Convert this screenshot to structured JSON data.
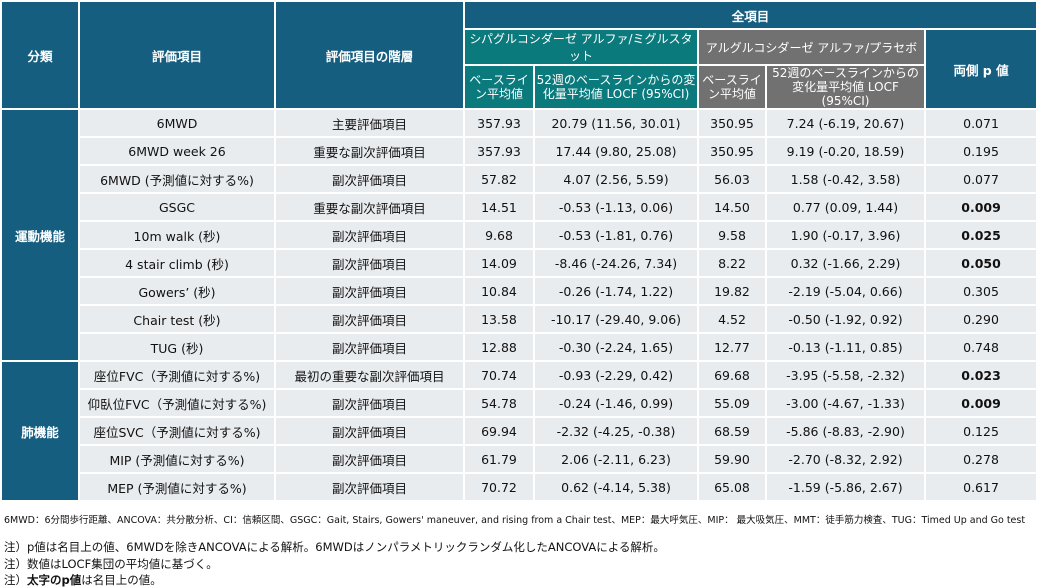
{
  "header": {
    "category": "分類",
    "item": "評価項目",
    "level": "評価項目の階層",
    "all": "全項目",
    "group1": "シパグルコシダーゼ アルファ/ミグルスタット",
    "group2": "アルグルコシダーゼ アルファ/プラセボ",
    "baseline": "ベースライン平均値",
    "change": "52週のベースラインからの変化量平均値 LOCF (95%CI)",
    "pvalue": "両側 p 値"
  },
  "categories": [
    "運動機能",
    "肺機能"
  ],
  "rows": [
    {
      "item": "6MWD",
      "level": "主要評価項目",
      "b1": "357.93",
      "c1": "20.79 (11.56, 30.01)",
      "b2": "350.95",
      "c2": "7.24 (-6.19, 20.67)",
      "p": "0.071",
      "bold": false
    },
    {
      "item": "6MWD week 26",
      "level": "重要な副次評価項目",
      "b1": "357.93",
      "c1": "17.44 (9.80, 25.08)",
      "b2": "350.95",
      "c2": "9.19 (-0.20, 18.59)",
      "p": "0.195",
      "bold": false
    },
    {
      "item": "6MWD (予測値に対する%)",
      "level": "副次評価項目",
      "b1": "57.82",
      "c1": "4.07 (2.56, 5.59)",
      "b2": "56.03",
      "c2": "1.58 (-0.42, 3.58)",
      "p": "0.077",
      "bold": false
    },
    {
      "item": "GSGC",
      "level": "重要な副次評価項目",
      "b1": "14.51",
      "c1": "-0.53 (-1.13, 0.06)",
      "b2": "14.50",
      "c2": "0.77 (0.09, 1.44)",
      "p": "0.009",
      "bold": true
    },
    {
      "item": "10m walk (秒)",
      "level": "副次評価項目",
      "b1": "9.68",
      "c1": "-0.53 (-1.81, 0.76)",
      "b2": "9.58",
      "c2": "1.90 (-0.17, 3.96)",
      "p": "0.025",
      "bold": true
    },
    {
      "item": "4 stair climb (秒)",
      "level": "副次評価項目",
      "b1": "14.09",
      "c1": "-8.46 (-24.26, 7.34)",
      "b2": "8.22",
      "c2": "0.32 (-1.66, 2.29)",
      "p": "0.050",
      "bold": true
    },
    {
      "item": "Gowers’ (秒)",
      "level": "副次評価項目",
      "b1": "10.84",
      "c1": "-0.26 (-1.74, 1.22)",
      "b2": "19.82",
      "c2": "-2.19 (-5.04, 0.66)",
      "p": "0.305",
      "bold": false
    },
    {
      "item": "Chair test (秒)",
      "level": "副次評価項目",
      "b1": "13.58",
      "c1": "-10.17 (-29.40, 9.06)",
      "b2": "4.52",
      "c2": "-0.50 (-1.92, 0.92)",
      "p": "0.290",
      "bold": false
    },
    {
      "item": "TUG (秒)",
      "level": "副次評価項目",
      "b1": "12.88",
      "c1": "-0.30 (-2.24, 1.65)",
      "b2": "12.77",
      "c2": "-0.13 (-1.11, 0.85)",
      "p": "0.748",
      "bold": false
    },
    {
      "item": "座位FVC（予測値に対する%)",
      "level": "最初の重要な副次評価項目",
      "b1": "70.74",
      "c1": "-0.93 (-2.29, 0.42)",
      "b2": "69.68",
      "c2": "-3.95 (-5.58, -2.32)",
      "p": "0.023",
      "bold": true
    },
    {
      "item": "仰臥位FVC（予測値に対する%)",
      "level": "副次評価項目",
      "b1": "54.78",
      "c1": "-0.24 (-1.46, 0.99)",
      "b2": "55.09",
      "c2": "-3.00 (-4.67, -1.33)",
      "p": "0.009",
      "bold": true
    },
    {
      "item": "座位SVC（予測値に対する%)",
      "level": "副次評価項目",
      "b1": "69.94",
      "c1": "-2.32 (-4.25, -0.38)",
      "b2": "68.59",
      "c2": "-5.86 (-8.83, -2.90)",
      "p": "0.125",
      "bold": false
    },
    {
      "item": "MIP (予測値に対する%)",
      "level": "副次評価項目",
      "b1": "61.79",
      "c1": "2.06 (-2.11, 6.23)",
      "b2": "59.90",
      "c2": "-2.70 (-8.32, 2.92)",
      "p": "0.278",
      "bold": false
    },
    {
      "item": "MEP (予測値に対する%)",
      "level": "副次評価項目",
      "b1": "70.72",
      "c1": "0.62 (-4.14, 5.38)",
      "b2": "65.08",
      "c2": "-1.59 (-5.86, 2.67)",
      "p": "0.617",
      "bold": false
    }
  ],
  "footnote": "6MWD：6分間歩行距離、ANCOVA：共分散分析、CI：信頼区間、GSGC：Gait, Stairs, Gowers' maneuver, and rising from a Chair test、MEP：最大呼気圧、MIP： 最大吸気圧、MMT：徒手筋力検査、TUG：Timed Up and Go test",
  "notes": [
    "注）p値は名目上の値、6MWDを除きANCOVAによる解析。6MWDはノンパラメトリックランダム化したANCOVAによる解析。",
    "注）数値はLOCF集団の平均値に基づく。"
  ],
  "note3_prefix": "注）",
  "note3_bold": "太字のp値",
  "note3_suffix": "は名目上の値。"
}
